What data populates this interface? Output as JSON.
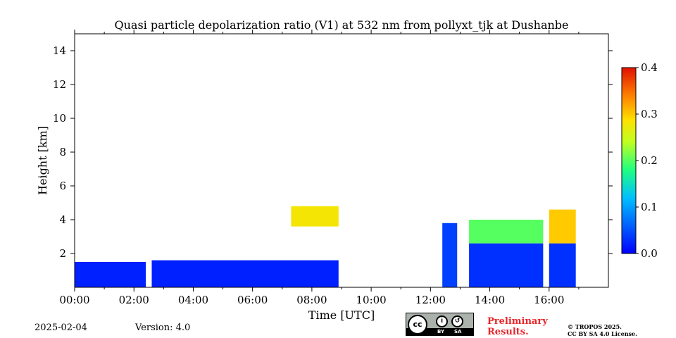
{
  "chart_data": {
    "type": "heatmap",
    "title": "Quasi particle depolarization ratio (V1) at 532 nm from pollyxt_tjk at Dushanbe",
    "xlabel": "Time [UTC]",
    "ylabel": "Height [km]",
    "xlim": [
      0,
      18
    ],
    "ylim": [
      0,
      15
    ],
    "x_ticks": [
      {
        "value": 0,
        "label": "00:00"
      },
      {
        "value": 2,
        "label": "02:00"
      },
      {
        "value": 4,
        "label": "04:00"
      },
      {
        "value": 6,
        "label": "06:00"
      },
      {
        "value": 8,
        "label": "08:00"
      },
      {
        "value": 10,
        "label": "10:00"
      },
      {
        "value": 12,
        "label": "12:00"
      },
      {
        "value": 14,
        "label": "14:00"
      },
      {
        "value": 16,
        "label": "16:00"
      }
    ],
    "y_ticks": [
      {
        "value": 2,
        "label": "2"
      },
      {
        "value": 4,
        "label": "4"
      },
      {
        "value": 6,
        "label": "6"
      },
      {
        "value": 8,
        "label": "8"
      },
      {
        "value": 10,
        "label": "10"
      },
      {
        "value": 12,
        "label": "12"
      },
      {
        "value": 14,
        "label": "14"
      }
    ],
    "colorbar": {
      "range": [
        0,
        0.4
      ],
      "ticks": [
        {
          "value": 0.0,
          "label": "0.0"
        },
        {
          "value": 0.1,
          "label": "0.1"
        },
        {
          "value": 0.2,
          "label": "0.2"
        },
        {
          "value": 0.3,
          "label": "0.3"
        },
        {
          "value": 0.4,
          "label": "0.4"
        }
      ],
      "colormap": "jet"
    },
    "regions": [
      {
        "t0": 0.0,
        "t1": 2.4,
        "h0": 0.0,
        "h1": 1.5,
        "value": 0.02
      },
      {
        "t0": 2.6,
        "t1": 8.9,
        "h0": 0.0,
        "h1": 1.6,
        "value": 0.02
      },
      {
        "t0": 7.3,
        "t1": 8.9,
        "h0": 3.6,
        "h1": 4.8,
        "value": 0.28
      },
      {
        "t0": 12.4,
        "t1": 12.9,
        "h0": 0.0,
        "h1": 3.8,
        "value": 0.04
      },
      {
        "t0": 13.3,
        "t1": 15.8,
        "h0": 0.0,
        "h1": 2.6,
        "value": 0.03
      },
      {
        "t0": 13.3,
        "t1": 15.8,
        "h0": 2.6,
        "h1": 4.0,
        "value": 0.2
      },
      {
        "t0": 16.0,
        "t1": 16.9,
        "h0": 0.0,
        "h1": 2.6,
        "value": 0.03
      },
      {
        "t0": 16.0,
        "t1": 16.9,
        "h0": 2.6,
        "h1": 4.6,
        "value": 0.3
      }
    ]
  },
  "footer": {
    "date": "2025-02-04",
    "version": "Version: 4.0",
    "preliminary_line1": "Preliminary",
    "preliminary_line2": "Results.",
    "copyright_line1": "© TROPOS 2025.",
    "copyright_line2": "CC BY SA 4.0 License.",
    "cc_label": "cc",
    "by_label": "BY",
    "sa_label": "SA"
  }
}
